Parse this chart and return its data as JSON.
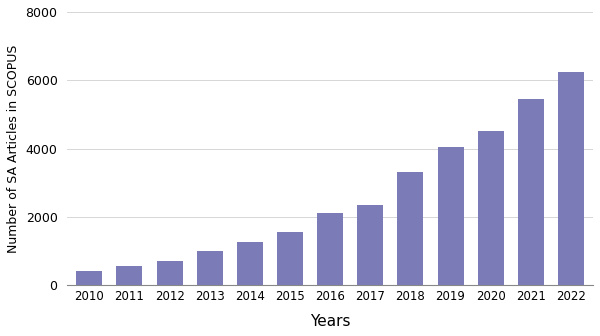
{
  "years": [
    2010,
    2011,
    2012,
    2013,
    2014,
    2015,
    2016,
    2017,
    2018,
    2019,
    2020,
    2021,
    2022
  ],
  "values": [
    420,
    570,
    720,
    1000,
    1250,
    1550,
    2100,
    2350,
    3300,
    4050,
    4500,
    5450,
    6250
  ],
  "bar_color": "#7B7BB8",
  "curve_color": "#F4A090",
  "ylabel": "Number of SA Articles in SCOPUS",
  "xlabel": "Years",
  "ylim": [
    0,
    8000
  ],
  "yticks": [
    0,
    2000,
    4000,
    6000,
    8000
  ],
  "background_color": "#ffffff",
  "grid_color": "#d0d0d0",
  "bar_width": 0.65
}
